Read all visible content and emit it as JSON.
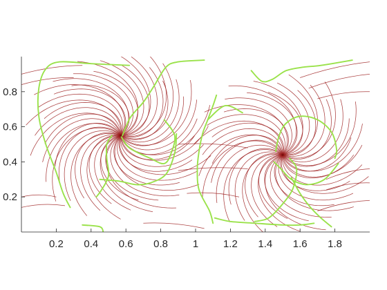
{
  "chart_data": {
    "type": "line",
    "title": "",
    "xlabel": "",
    "ylabel": "",
    "xlim": [
      0,
      2
    ],
    "ylim": [
      0,
      1
    ],
    "grid": false,
    "x_ticks": [
      {
        "value": 0.2,
        "label": "0.2"
      },
      {
        "value": 0.4,
        "label": "0.4"
      },
      {
        "value": 0.6,
        "label": "0.6"
      },
      {
        "value": 0.8,
        "label": "0.8"
      },
      {
        "value": 1.0,
        "label": "1"
      },
      {
        "value": 1.2,
        "label": "1.2"
      },
      {
        "value": 1.4,
        "label": "1.4"
      },
      {
        "value": 1.6,
        "label": "1.6"
      },
      {
        "value": 1.8,
        "label": "1.8"
      }
    ],
    "y_ticks": [
      {
        "value": 0.2,
        "label": "0.2"
      },
      {
        "value": 0.4,
        "label": "0.4"
      },
      {
        "value": 0.6,
        "label": "0.6"
      },
      {
        "value": 0.8,
        "label": "0.8"
      }
    ],
    "colors": {
      "streamlines": "#9b1b1b",
      "contours": "#9ae24a",
      "axis": "#262626"
    },
    "vortex_centers": [
      {
        "x": 0.57,
        "y": 0.55
      },
      {
        "x": 1.5,
        "y": 0.44
      }
    ],
    "green_curves": [
      [
        [
          0.62,
          0.95
        ],
        [
          0.4,
          0.96
        ],
        [
          0.22,
          0.97
        ],
        [
          0.14,
          0.93
        ],
        [
          0.1,
          0.82
        ],
        [
          0.1,
          0.66
        ],
        [
          0.14,
          0.5
        ],
        [
          0.2,
          0.34
        ],
        [
          0.24,
          0.22
        ],
        [
          0.28,
          0.14
        ]
      ],
      [
        [
          0.35,
          0.04
        ],
        [
          0.45,
          0.03
        ],
        [
          0.47,
          0.0
        ]
      ],
      [
        [
          0.58,
          0.55
        ],
        [
          0.6,
          0.6
        ],
        [
          0.63,
          0.66
        ],
        [
          0.7,
          0.74
        ],
        [
          0.76,
          0.83
        ],
        [
          0.83,
          0.94
        ],
        [
          0.9,
          0.97
        ],
        [
          1.05,
          0.98
        ]
      ],
      [
        [
          0.52,
          0.55
        ],
        [
          0.49,
          0.5
        ],
        [
          0.49,
          0.42
        ],
        [
          0.5,
          0.32
        ],
        [
          0.46,
          0.24
        ],
        [
          0.43,
          0.2
        ]
      ],
      [
        [
          0.57,
          0.55
        ],
        [
          0.62,
          0.48
        ],
        [
          0.74,
          0.42
        ],
        [
          0.82,
          0.39
        ],
        [
          0.86,
          0.45
        ],
        [
          0.88,
          0.55
        ],
        [
          0.82,
          0.64
        ]
      ],
      [
        [
          0.45,
          0.3
        ],
        [
          0.56,
          0.29
        ],
        [
          0.66,
          0.27
        ],
        [
          0.74,
          0.28
        ],
        [
          0.83,
          0.33
        ],
        [
          0.88,
          0.45
        ],
        [
          0.89,
          0.56
        ]
      ],
      [
        [
          1.1,
          0.05
        ],
        [
          1.08,
          0.12
        ],
        [
          1.02,
          0.24
        ],
        [
          1.01,
          0.36
        ],
        [
          1.02,
          0.46
        ],
        [
          1.04,
          0.56
        ],
        [
          1.07,
          0.64
        ],
        [
          1.1,
          0.72
        ],
        [
          1.12,
          0.78
        ]
      ],
      [
        [
          1.07,
          0.64
        ],
        [
          1.17,
          0.72
        ],
        [
          1.27,
          0.68
        ]
      ],
      [
        [
          1.11,
          0.08
        ],
        [
          1.2,
          0.06
        ],
        [
          1.34,
          0.05
        ],
        [
          1.5,
          0.04
        ],
        [
          1.6,
          0.04
        ],
        [
          1.68,
          0.05
        ]
      ],
      [
        [
          1.34,
          0.06
        ],
        [
          1.42,
          0.08
        ],
        [
          1.5,
          0.16
        ],
        [
          1.56,
          0.25
        ],
        [
          1.58,
          0.36
        ],
        [
          1.54,
          0.42
        ]
      ],
      [
        [
          1.46,
          0.46
        ],
        [
          1.48,
          0.55
        ],
        [
          1.52,
          0.62
        ],
        [
          1.6,
          0.66
        ],
        [
          1.7,
          0.64
        ],
        [
          1.78,
          0.57
        ],
        [
          1.81,
          0.47
        ],
        [
          1.8,
          0.42
        ]
      ],
      [
        [
          1.45,
          0.4
        ],
        [
          1.49,
          0.36
        ],
        [
          1.55,
          0.3
        ],
        [
          1.64,
          0.27
        ],
        [
          1.74,
          0.3
        ],
        [
          1.82,
          0.39
        ]
      ],
      [
        [
          1.55,
          0.31
        ],
        [
          1.6,
          0.22
        ],
        [
          1.66,
          0.14
        ],
        [
          1.72,
          0.08
        ],
        [
          1.78,
          0.03
        ]
      ],
      [
        [
          1.32,
          0.92
        ],
        [
          1.38,
          0.86
        ],
        [
          1.44,
          0.87
        ],
        [
          1.52,
          0.92
        ],
        [
          1.62,
          0.94
        ],
        [
          1.72,
          0.95
        ],
        [
          1.9,
          0.98
        ]
      ]
    ],
    "streamline_generator": {
      "vortex_streams": [
        {
          "center_index": 0,
          "count": 52,
          "start_radius": 0.5,
          "end_radius": 0.0
        },
        {
          "center_index": 1,
          "count": 46,
          "start_radius": 0.48,
          "end_radius": 0.0
        }
      ],
      "edge_streams": [
        {
          "from": [
            0.0,
            0.9
          ],
          "to": [
            0.35,
            0.95
          ]
        },
        {
          "from": [
            0.0,
            0.84
          ],
          "to": [
            0.3,
            0.88
          ]
        },
        {
          "from": [
            0.0,
            0.2
          ],
          "to": [
            0.2,
            0.2
          ]
        },
        {
          "from": [
            0.0,
            0.14
          ],
          "to": [
            0.25,
            0.15
          ]
        },
        {
          "from": [
            1.6,
            0.88
          ],
          "to": [
            2.0,
            0.97
          ]
        },
        {
          "from": [
            1.65,
            0.82
          ],
          "to": [
            2.0,
            0.9
          ]
        },
        {
          "from": [
            1.7,
            0.76
          ],
          "to": [
            2.0,
            0.8
          ]
        },
        {
          "from": [
            1.75,
            0.3
          ],
          "to": [
            2.0,
            0.36
          ]
        },
        {
          "from": [
            1.75,
            0.24
          ],
          "to": [
            2.0,
            0.28
          ]
        },
        {
          "from": [
            1.7,
            0.12
          ],
          "to": [
            2.0,
            0.18
          ]
        },
        {
          "from": [
            0.9,
            0.35
          ],
          "to": [
            1.3,
            0.36
          ]
        },
        {
          "from": [
            0.9,
            0.5
          ],
          "to": [
            1.3,
            0.48
          ]
        },
        {
          "from": [
            0.95,
            0.22
          ],
          "to": [
            1.25,
            0.2
          ]
        },
        {
          "from": [
            0.7,
            0.05
          ],
          "to": [
            1.05,
            0.02
          ]
        }
      ]
    }
  }
}
